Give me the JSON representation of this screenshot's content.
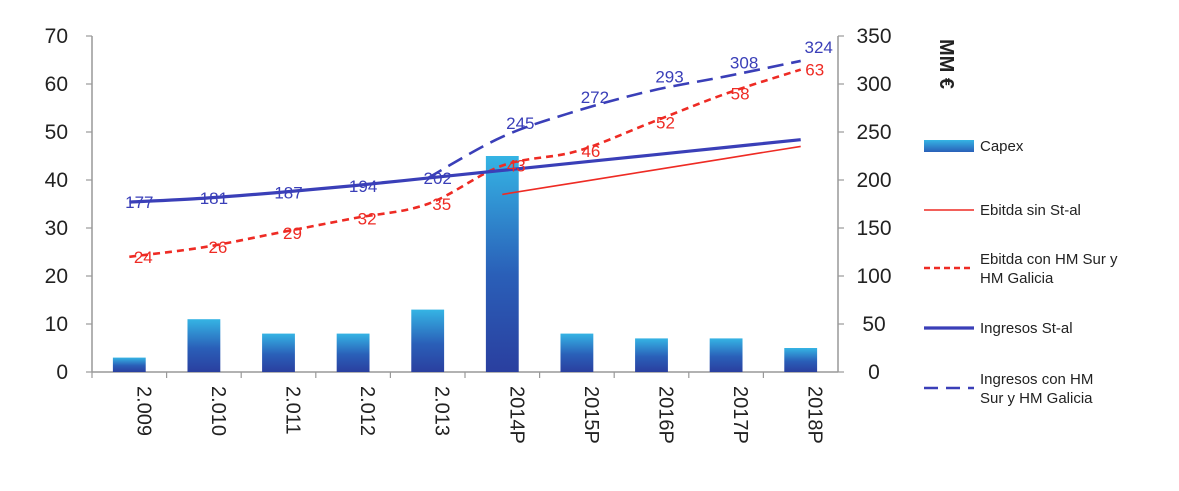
{
  "chart_data": {
    "type": "bar",
    "categories": [
      "2.009",
      "2.010",
      "2.011",
      "2.012",
      "2.013",
      "2014P",
      "2015P",
      "2016P",
      "2017P",
      "2018P"
    ],
    "y_left": {
      "ticks": [
        "0",
        "10",
        "20",
        "30",
        "40",
        "50",
        "60",
        "70"
      ],
      "ylim": [
        0,
        70
      ]
    },
    "y_right": {
      "ticks": [
        "0",
        "50",
        "100",
        "150",
        "200",
        "250",
        "300",
        "350"
      ],
      "ylim": [
        0,
        350
      ],
      "label": "MM €"
    },
    "series": [
      {
        "name": "Capex",
        "type": "bar",
        "axis": "left",
        "color": "#2f7fc0",
        "values": [
          3,
          11,
          8,
          8,
          13,
          45,
          8,
          7,
          7,
          5
        ],
        "labels": []
      },
      {
        "name": "Ebitda sin St-al",
        "type": "line",
        "style": "solid",
        "axis": "left",
        "color": "#ee2b24",
        "values": [
          null,
          null,
          null,
          null,
          null,
          37,
          39.5,
          42,
          44.5,
          47
        ],
        "labels": []
      },
      {
        "name": "Ebitda con HM Sur y HM Galicia",
        "type": "line",
        "style": "dashed",
        "axis": "left",
        "color": "#ee2b24",
        "values": [
          24,
          26,
          29,
          32,
          35,
          43,
          46,
          52,
          58,
          63
        ],
        "labels": [
          "24",
          "26",
          "29",
          "32",
          "35",
          "43",
          "46",
          "52",
          "58",
          "63"
        ]
      },
      {
        "name": "Ingresos St-al",
        "type": "line",
        "style": "solid",
        "axis": "right",
        "color": "#3a3fb8",
        "values": [
          177,
          181,
          187,
          194,
          202,
          210,
          218,
          226,
          234,
          242
        ],
        "labels": [
          "177",
          "181",
          "187",
          "194",
          "202",
          "",
          "",
          "",
          "",
          ""
        ]
      },
      {
        "name": "Ingresos con HM Sur y HM Galicia",
        "type": "line",
        "style": "dashed",
        "axis": "right",
        "color": "#3a3fb8",
        "values": [
          null,
          null,
          null,
          null,
          202,
          245,
          272,
          293,
          308,
          324
        ],
        "labels": [
          "",
          "",
          "",
          "",
          "",
          "245",
          "272",
          "293",
          "308",
          "324"
        ]
      }
    ],
    "legend": [
      "Capex",
      "Ebitda sin St-al",
      "Ebitda con HM Sur y HM Galicia",
      "Ingresos St-al",
      "Ingresos con HM Sur y HM Galicia"
    ],
    "legend_position": "right"
  }
}
